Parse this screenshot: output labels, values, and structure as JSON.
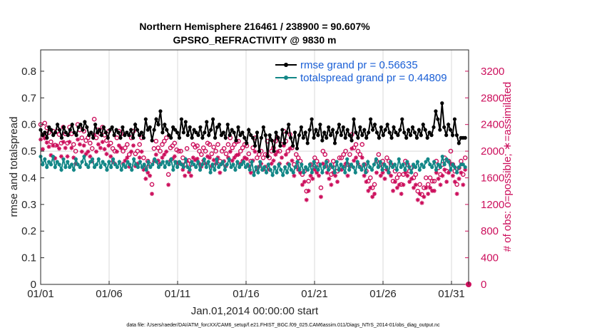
{
  "chart_data": {
    "type": "line",
    "title_line1": "Northern Hemisphere 216461 / 238900 = 90.607%",
    "title_line2": "GPSRO_REFRACTIVITY @ 9830 m",
    "xlabel": "Jan.01,2014 00:00:00 start",
    "ylabel": "rmse and totalspread",
    "ylabel_right": "# of obs: o=possible; ∗=assimilated",
    "footnote": "data file: /Users/raeder/DAI/ATM_forcXX/CAM6_setup/f.e21.FHIST_BGC.f09_025.CAM6assim.011/Diags_NTrS_2014-01/obs_diag_output.nc",
    "xlim": [
      0,
      31.25
    ],
    "ylim": [
      0,
      0.88
    ],
    "ylim_right": [
      0,
      3520
    ],
    "x_ticks": [
      0,
      5,
      10,
      15,
      20,
      25,
      30
    ],
    "x_tick_labels": [
      "01/01",
      "01/06",
      "01/11",
      "01/16",
      "01/21",
      "01/26",
      "01/31"
    ],
    "y_ticks": [
      0,
      0.1,
      0.2,
      0.3,
      0.4,
      0.5,
      0.6,
      0.7,
      0.8
    ],
    "y_tick_labels": [
      "0",
      "0.1",
      "0.2",
      "0.3",
      "0.4",
      "0.5",
      "0.6",
      "0.7",
      "0.8"
    ],
    "y_right_ticks": [
      0,
      400,
      800,
      1200,
      1600,
      2000,
      2400,
      2800,
      3200
    ],
    "y_right_tick_labels": [
      "0",
      "400",
      "800",
      "1200",
      "1600",
      "2000",
      "2400",
      "2800",
      "3200"
    ],
    "colors": {
      "rmse": "#000000",
      "spread": "#138787",
      "obs": "#cc0f5c",
      "legend_text": "#1a5fd6",
      "grid": "#d9d9d9",
      "axis": "#262626"
    },
    "series": [
      {
        "name": "rmse",
        "label": "rmse grand pr = 0.56635",
        "values": [
          0.58,
          0.56,
          0.57,
          0.55,
          0.59,
          0.58,
          0.56,
          0.57,
          0.6,
          0.58,
          0.55,
          0.59,
          0.57,
          0.56,
          0.58,
          0.6,
          0.57,
          0.56,
          0.59,
          0.6,
          0.58,
          0.61,
          0.59,
          0.56,
          0.57,
          0.55,
          0.6,
          0.57,
          0.58,
          0.56,
          0.59,
          0.57,
          0.55,
          0.58,
          0.59,
          0.56,
          0.58,
          0.57,
          0.55,
          0.59,
          0.56,
          0.57,
          0.56,
          0.58,
          0.55,
          0.6,
          0.58,
          0.56,
          0.57,
          0.55,
          0.62,
          0.58,
          0.59,
          0.54,
          0.58,
          0.62,
          0.6,
          0.65,
          0.57,
          0.6,
          0.58,
          0.56,
          0.55,
          0.59,
          0.58,
          0.57,
          0.55,
          0.62,
          0.57,
          0.61,
          0.56,
          0.59,
          0.55,
          0.58,
          0.57,
          0.56,
          0.59,
          0.55,
          0.57,
          0.61,
          0.56,
          0.58,
          0.62,
          0.55,
          0.59,
          0.6,
          0.56,
          0.57,
          0.55,
          0.6,
          0.56,
          0.58,
          0.57,
          0.54,
          0.59,
          0.56,
          0.57,
          0.55,
          0.53,
          0.58,
          0.56,
          0.55,
          0.52,
          0.57,
          0.5,
          0.55,
          0.59,
          0.56,
          0.48,
          0.56,
          0.54,
          0.5,
          0.57,
          0.55,
          0.52,
          0.58,
          0.53,
          0.57,
          0.6,
          0.55,
          0.52,
          0.57,
          0.51,
          0.56,
          0.59,
          0.55,
          0.57,
          0.53,
          0.58,
          0.62,
          0.55,
          0.58,
          0.56,
          0.6,
          0.54,
          0.57,
          0.55,
          0.59,
          0.56,
          0.58,
          0.53,
          0.57,
          0.6,
          0.56,
          0.59,
          0.55,
          0.58,
          0.56,
          0.54,
          0.62,
          0.57,
          0.55,
          0.59,
          0.56,
          0.58,
          0.55,
          0.57,
          0.62,
          0.58,
          0.6,
          0.57,
          0.55,
          0.59,
          0.56,
          0.58,
          0.6,
          0.57,
          0.55,
          0.59,
          0.57,
          0.56,
          0.58,
          0.62,
          0.57,
          0.55,
          0.58,
          0.56,
          0.59,
          0.57,
          0.55,
          0.58,
          0.56,
          0.6,
          0.58,
          0.55,
          0.57,
          0.56,
          0.59,
          0.65,
          0.62,
          0.58,
          0.68,
          0.59,
          0.56,
          0.6,
          0.58,
          0.56,
          0.62,
          0.56,
          0.53,
          0.55,
          0.55,
          0.55
        ]
      },
      {
        "name": "totalspread",
        "label": "totalspread grand pr = 0.44809",
        "values": [
          0.48,
          0.45,
          0.47,
          0.44,
          0.46,
          0.45,
          0.48,
          0.44,
          0.46,
          0.45,
          0.43,
          0.47,
          0.44,
          0.46,
          0.44,
          0.45,
          0.43,
          0.47,
          0.45,
          0.44,
          0.46,
          0.48,
          0.45,
          0.44,
          0.46,
          0.47,
          0.44,
          0.45,
          0.47,
          0.44,
          0.46,
          0.45,
          0.43,
          0.46,
          0.44,
          0.47,
          0.45,
          0.44,
          0.46,
          0.43,
          0.45,
          0.44,
          0.46,
          0.45,
          0.43,
          0.47,
          0.45,
          0.44,
          0.46,
          0.44,
          0.45,
          0.43,
          0.46,
          0.44,
          0.45,
          0.47,
          0.46,
          0.44,
          0.45,
          0.46,
          0.44,
          0.46,
          0.45,
          0.47,
          0.43,
          0.46,
          0.44,
          0.46,
          0.45,
          0.44,
          0.47,
          0.44,
          0.43,
          0.46,
          0.45,
          0.44,
          0.46,
          0.43,
          0.45,
          0.47,
          0.44,
          0.46,
          0.42,
          0.45,
          0.43,
          0.47,
          0.44,
          0.45,
          0.46,
          0.43,
          0.45,
          0.47,
          0.44,
          0.45,
          0.43,
          0.46,
          0.44,
          0.45,
          0.46,
          0.44,
          0.45,
          0.43,
          0.46,
          0.41,
          0.44,
          0.42,
          0.46,
          0.43,
          0.44,
          0.42,
          0.45,
          0.43,
          0.41,
          0.44,
          0.42,
          0.45,
          0.43,
          0.41,
          0.44,
          0.42,
          0.45,
          0.43,
          0.42,
          0.44,
          0.46,
          0.43,
          0.45,
          0.42,
          0.44,
          0.43,
          0.45,
          0.42,
          0.46,
          0.44,
          0.43,
          0.45,
          0.42,
          0.44,
          0.46,
          0.43,
          0.45,
          0.44,
          0.42,
          0.46,
          0.43,
          0.45,
          0.44,
          0.42,
          0.47,
          0.43,
          0.45,
          0.44,
          0.42,
          0.46,
          0.44,
          0.43,
          0.45,
          0.42,
          0.46,
          0.44,
          0.43,
          0.45,
          0.47,
          0.44,
          0.46,
          0.43,
          0.45,
          0.44,
          0.42,
          0.46,
          0.44,
          0.45,
          0.43,
          0.47,
          0.44,
          0.45,
          0.43,
          0.46,
          0.44,
          0.42,
          0.45,
          0.44,
          0.46,
          0.43,
          0.45,
          0.44,
          0.46,
          0.47,
          0.45,
          0.44,
          0.46,
          0.43,
          0.45,
          0.44,
          0.48,
          0.45,
          0.47,
          0.46,
          0.43,
          0.45,
          0.44,
          0.42,
          0.44,
          0.45,
          0.45,
          0.44
        ]
      }
    ],
    "obs_possible": [
      2400,
      2240,
      2420,
      2350,
      2280,
      2140,
      2300,
      2090,
      2300,
      2250,
      2120,
      2360,
      2260,
      2120,
      2360,
      2260,
      2100,
      2000,
      2400,
      2320,
      2200,
      2300,
      2160,
      2200,
      2120,
      2040,
      2480,
      2200,
      2320,
      2260,
      2360,
      2240,
      2160,
      2300,
      2120,
      2040,
      2000,
      2200,
      2300,
      2260,
      2000,
      2050,
      2100,
      1950,
      2200,
      2300,
      1960,
      2000,
      2100,
      2200,
      1900,
      1750,
      1850,
      1800,
      1500,
      2040,
      2150,
      2050,
      2000,
      2100,
      2150,
      2200,
      1650,
      2050,
      2080,
      2120,
      2020,
      2000,
      2000,
      1900,
      1800,
      2040,
      1860,
      1800,
      2100,
      2060,
      2080,
      2000,
      1950,
      2050,
      2000,
      2120,
      2100,
      1960,
      2060,
      2000,
      2100,
      1850,
      2000,
      2040,
      1960,
      2100,
      2200,
      2050,
      2100,
      2140,
      2150,
      2000,
      2050,
      2100,
      2080,
      1960,
      1850,
      2050,
      2200,
      1900,
      1950,
      2000,
      1900,
      1950,
      2150,
      1900,
      2000,
      2050,
      2150,
      2200,
      2000,
      2100,
      2300,
      2150,
      2000,
      2250,
      2050,
      1800,
      1950,
      1900,
      1850,
      1650,
      1700,
      1400,
      1550,
      1800,
      1750,
      1900,
      1850,
      1800,
      1450,
      2000,
      1950,
      1850,
      1750,
      1650,
      1850,
      1800,
      1700,
      1900,
      1900,
      1950,
      2000,
      1800,
      1950,
      2250,
      2050,
      2100,
      2000,
      1950,
      2100,
      1800,
      1700,
      1550,
      1600,
      1450,
      1500,
      1850,
      1950,
      1800,
      1850,
      1750,
      1900,
      1850,
      1800,
      1550,
      1700,
      1600,
      1650,
      1500,
      1650,
      1850,
      1800,
      1700,
      1750,
      1600,
      1650,
      1400,
      1500,
      1350,
      1450,
      1600,
      1500,
      1600,
      1550,
      1550,
      1850,
      1750,
      1650,
      1800,
      1900,
      1700,
      1850,
      2000,
      1800,
      1700,
      1500,
      1750,
      1850,
      1650,
      1900
    ]
  }
}
